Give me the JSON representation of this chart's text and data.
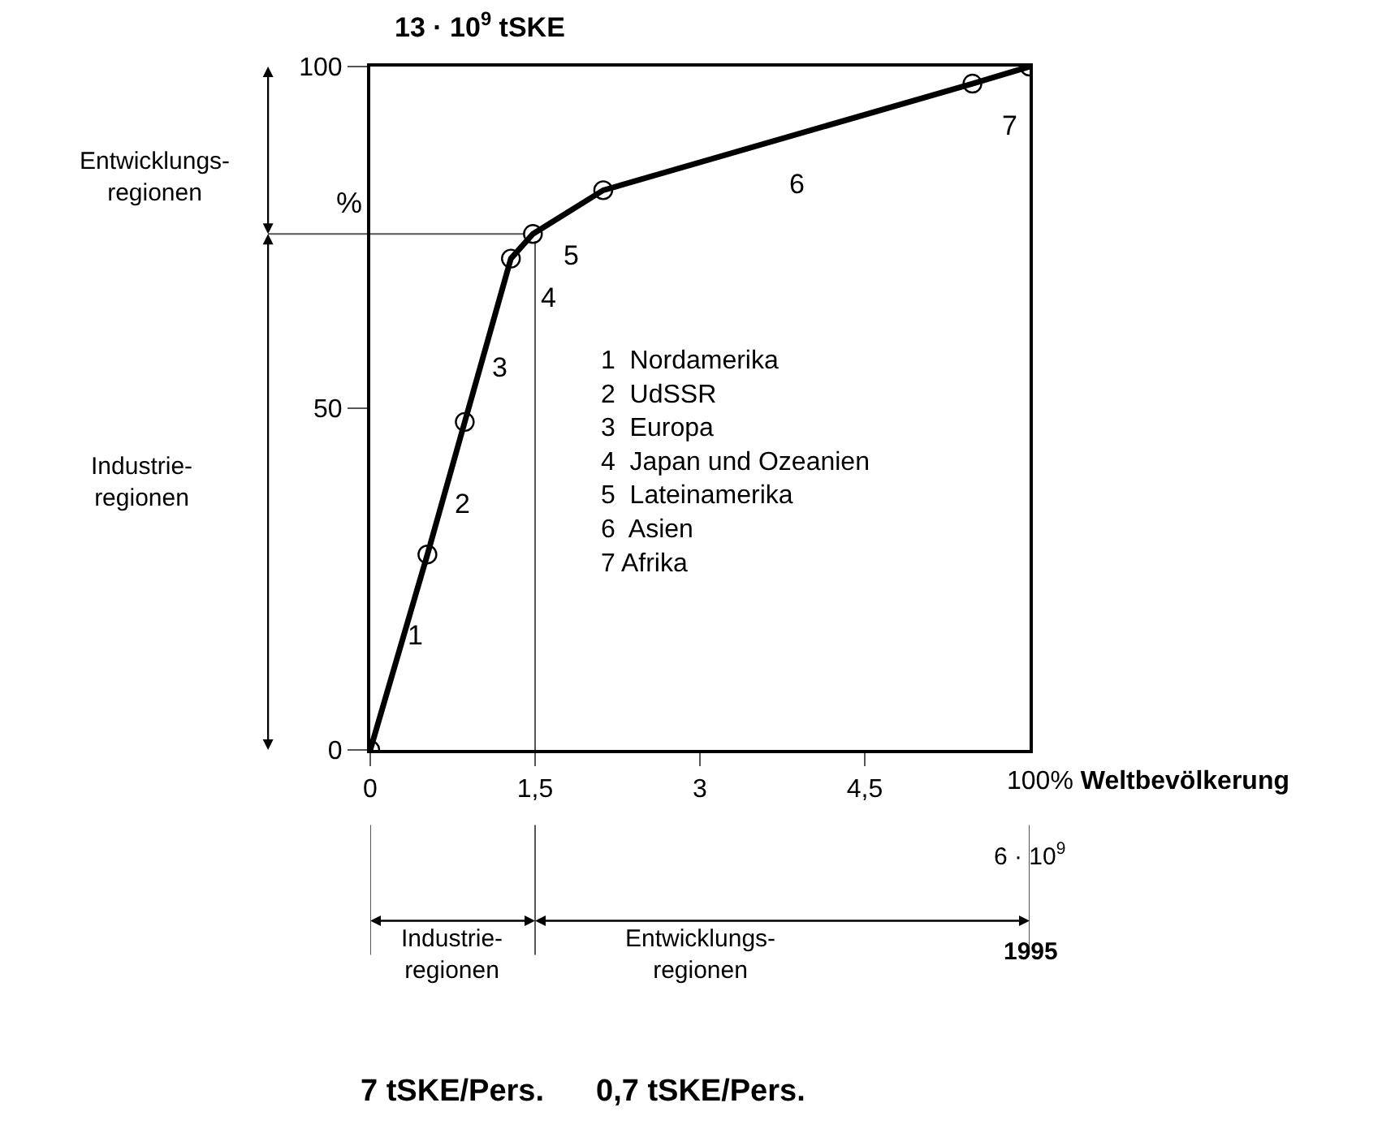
{
  "chart_data": {
    "type": "line",
    "title": "13 · 10$^{9}$ tSKE",
    "xlabel": "100% Weltbevölkerung",
    "ylabel": "%",
    "x": [
      0,
      0.52,
      0.86,
      1.28,
      1.48,
      2.12,
      5.48,
      6
    ],
    "series": [
      {
        "color": "#000000",
        "values": [
          0,
          28.6,
          48,
          71.9,
          75.5,
          81.9,
          97.5,
          100
        ]
      }
    ],
    "xlim": [
      0,
      6
    ],
    "ylim": [
      0,
      100
    ],
    "xticks": [
      0,
      {
        "value": 1.5,
        "label": "1,5"
      },
      3,
      {
        "value": 4.5,
        "label": "4,5"
      }
    ],
    "yticks": [
      0,
      50,
      100
    ],
    "marker": "circle",
    "line_style": "solid",
    "grid": false,
    "legend": false,
    "ref_lines": [
      {
        "axis": "y",
        "value": 75.5,
        "color": "#555555"
      },
      {
        "axis": "x",
        "value": 1.5,
        "color": "#555555"
      }
    ],
    "annotations": [
      "1",
      "2",
      "3",
      "4",
      "5",
      "6",
      "7",
      "1  Nordamerika\n2  UdSSR\n3  Europa\n4  Japan und Ozeanien\n5  Lateinamerika\n6  Asien\n7 Afrika",
      "Entwicklungs-\nregionen",
      "Industrie-\nregionen",
      "6 · 10$^{9}$",
      "Industrie-\nregionen",
      "Entwicklungs-\nregionen",
      "1995",
      "7 tSKE/Pers.",
      "0,7 tSKE/Pers."
    ]
  }
}
